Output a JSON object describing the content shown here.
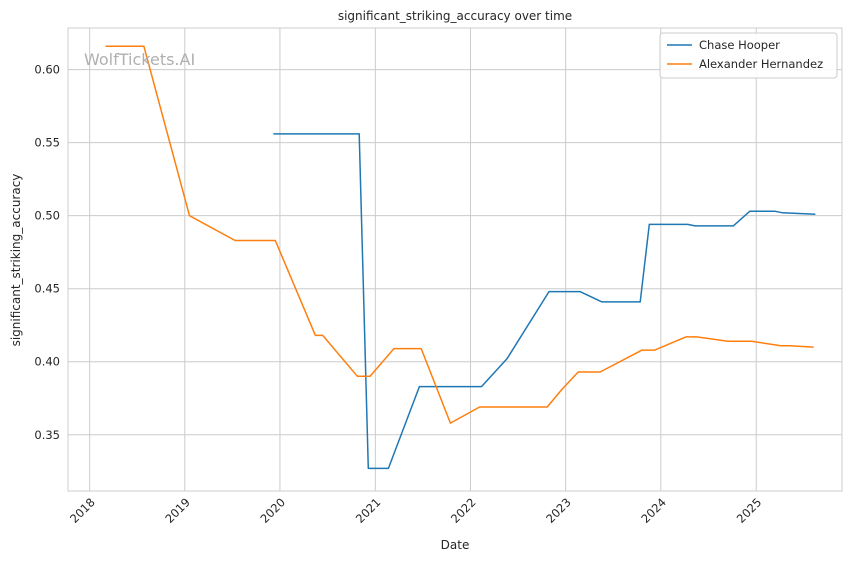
{
  "chart_data": {
    "type": "line",
    "title": "significant_striking_accuracy over time",
    "xlabel": "Date",
    "ylabel": "significant_striking_accuracy",
    "watermark": "WolfTickets.AI",
    "x_ticks": [
      "2018",
      "2019",
      "2020",
      "2021",
      "2022",
      "2023",
      "2024",
      "2025"
    ],
    "y_ticks": [
      "0.35",
      "0.40",
      "0.45",
      "0.50",
      "0.55",
      "0.60"
    ],
    "xlim": [
      "2017-10-10",
      "2025-11-26"
    ],
    "ylim": [
      0.3115,
      0.6285
    ],
    "grid": true,
    "legend_position": "top-right",
    "series": [
      {
        "name": "Chase Hooper",
        "color": "#1f77b4",
        "points": [
          [
            "2019-12-07",
            0.556
          ],
          [
            "2020-10-31",
            0.556
          ],
          [
            "2020-12-05",
            0.327
          ],
          [
            "2021-02-20",
            0.327
          ],
          [
            "2021-06-19",
            0.383
          ],
          [
            "2022-02-12",
            0.383
          ],
          [
            "2022-05-21",
            0.402
          ],
          [
            "2022-10-29",
            0.448
          ],
          [
            "2023-02-25",
            0.448
          ],
          [
            "2023-05-20",
            0.441
          ],
          [
            "2023-10-14",
            0.441
          ],
          [
            "2023-11-18",
            0.494
          ],
          [
            "2024-04-13",
            0.494
          ],
          [
            "2024-05-11",
            0.493
          ],
          [
            "2024-10-05",
            0.493
          ],
          [
            "2024-12-07",
            0.503
          ],
          [
            "2025-03-15",
            0.503
          ],
          [
            "2025-04-12",
            0.502
          ],
          [
            "2025-08-16",
            0.501
          ]
        ]
      },
      {
        "name": "Alexander Hernandez",
        "color": "#ff7f0e",
        "points": [
          [
            "2018-03-03",
            0.616
          ],
          [
            "2018-07-28",
            0.616
          ],
          [
            "2019-01-19",
            0.5
          ],
          [
            "2019-07-13",
            0.483
          ],
          [
            "2019-12-14",
            0.483
          ],
          [
            "2020-05-16",
            0.418
          ],
          [
            "2020-06-13",
            0.418
          ],
          [
            "2020-10-24",
            0.39
          ],
          [
            "2020-12-12",
            0.39
          ],
          [
            "2021-03-13",
            0.409
          ],
          [
            "2021-06-26",
            0.409
          ],
          [
            "2021-10-16",
            0.358
          ],
          [
            "2022-02-05",
            0.369
          ],
          [
            "2022-10-22",
            0.369
          ],
          [
            "2022-12-17",
            0.381
          ],
          [
            "2023-02-18",
            0.393
          ],
          [
            "2023-05-13",
            0.393
          ],
          [
            "2023-10-21",
            0.408
          ],
          [
            "2023-12-09",
            0.408
          ],
          [
            "2024-04-06",
            0.417
          ],
          [
            "2024-05-18",
            0.417
          ],
          [
            "2024-09-14",
            0.414
          ],
          [
            "2024-12-14",
            0.414
          ],
          [
            "2025-04-05",
            0.411
          ],
          [
            "2025-05-10",
            0.411
          ],
          [
            "2025-08-09",
            0.41
          ]
        ]
      }
    ]
  }
}
